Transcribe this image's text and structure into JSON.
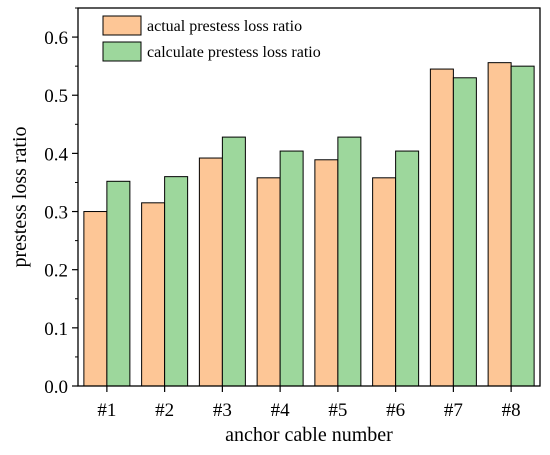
{
  "chart_data": {
    "type": "bar",
    "title": "",
    "xlabel": "anchor cable number",
    "ylabel": "prestess loss ratio",
    "categories": [
      "#1",
      "#2",
      "#3",
      "#4",
      "#5",
      "#6",
      "#7",
      "#8"
    ],
    "series": [
      {
        "name": "actual prestess loss ratio",
        "color": "#FDC696",
        "values": [
          0.3,
          0.315,
          0.392,
          0.358,
          0.389,
          0.358,
          0.545,
          0.556
        ]
      },
      {
        "name": "calculate prestess loss ratio",
        "color": "#9DD79C",
        "values": [
          0.352,
          0.36,
          0.428,
          0.404,
          0.428,
          0.404,
          0.53,
          0.55
        ]
      }
    ],
    "ylim": [
      0,
      0.65
    ],
    "yticks": [
      "0.0",
      "0.1",
      "0.2",
      "0.3",
      "0.4",
      "0.5",
      "0.6"
    ],
    "yticks_values": [
      0.0,
      0.1,
      0.2,
      0.3,
      0.4,
      0.5,
      0.6
    ],
    "grid": false,
    "legend_position": "top-left"
  }
}
